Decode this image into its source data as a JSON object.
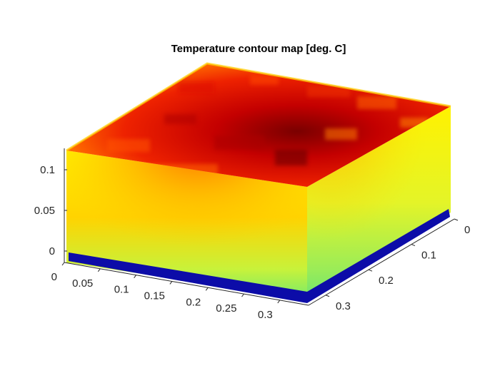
{
  "chart_data": {
    "type": "heatmap",
    "title": "Temperature contour map [deg. C]",
    "xlabel": "",
    "ylabel": "",
    "zlabel": "",
    "colormap": "jet",
    "colors": {
      "hot": "#cc0000",
      "warm": "#ff6a00",
      "mid": "#ffdd00",
      "cool": "#72ee6e",
      "base_plate": "#0c0ca8"
    },
    "x_axis": {
      "ticks": [
        "0",
        "0.05",
        "0.1",
        "0.15",
        "0.2",
        "0.25",
        "0.3"
      ]
    },
    "y_axis": {
      "ticks": [
        "0",
        "0.1",
        "0.2",
        "0.3"
      ]
    },
    "z_axis": {
      "ticks": [
        "0",
        "0.05",
        "0.1"
      ]
    }
  }
}
